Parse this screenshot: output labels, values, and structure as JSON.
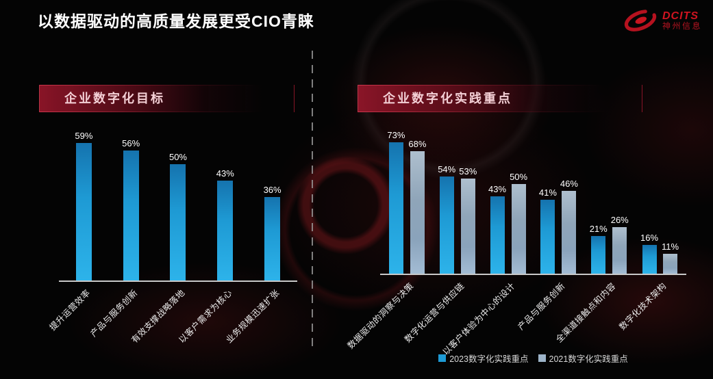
{
  "slide": {
    "title": "以数据驱动的高质量发展更受CIO青睐",
    "logo": {
      "brand": "DCITS",
      "company": "神州信息"
    },
    "colors": {
      "accent_red": "#c8102e",
      "bar_2023": "#1e9ad4",
      "bar_2021": "#9db4c9",
      "baseline": "#c9c9c9",
      "background": "#040404"
    }
  },
  "chart_data": [
    {
      "type": "bar",
      "title": "企业数字化目标",
      "categories": [
        "提升运营效率",
        "产品与服务创新",
        "有效支撑战略落地",
        "以客户需求为核心",
        "业务规模迅速扩张"
      ],
      "values": [
        59,
        56,
        50,
        43,
        36
      ],
      "unit": "%",
      "xlabel": "",
      "ylabel": "",
      "ylim": [
        0,
        65
      ],
      "grid": false,
      "legend_position": "none",
      "bar_color": "#1e9ad4"
    },
    {
      "type": "bar",
      "title": "企业数字化实践重点",
      "categories": [
        "数据驱动的洞察与决策",
        "数字化运营与供应链",
        "以客户体验为中心的设计",
        "产品与服务创新",
        "全渠道接触点和内容",
        "数字化技术架构"
      ],
      "series": [
        {
          "name": "2023数字化实践重点",
          "values": [
            73,
            54,
            43,
            41,
            21,
            16
          ],
          "color": "#1e9ad4"
        },
        {
          "name": "2021数字化实践重点",
          "values": [
            68,
            53,
            50,
            46,
            26,
            11
          ],
          "color": "#9db4c9"
        }
      ],
      "unit": "%",
      "xlabel": "",
      "ylabel": "",
      "ylim": [
        0,
        80
      ],
      "grid": false,
      "legend_position": "bottom"
    }
  ]
}
